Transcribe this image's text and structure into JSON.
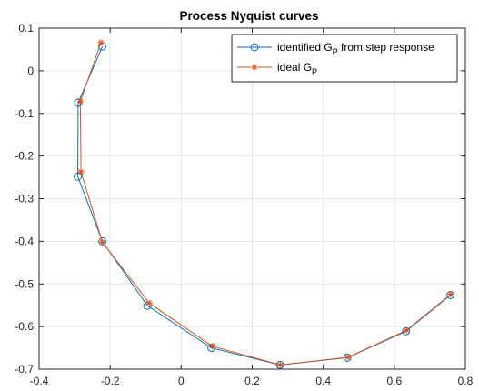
{
  "chart_data": {
    "type": "line",
    "title": "Process Nyquist curves",
    "xlabel": "",
    "ylabel": "",
    "xlim": [
      -0.4,
      0.8
    ],
    "ylim": [
      -0.7,
      0.1
    ],
    "xticks": [
      -0.4,
      -0.2,
      0,
      0.2,
      0.4,
      0.6,
      0.8
    ],
    "yticks": [
      0.1,
      0,
      -0.1,
      -0.2,
      -0.3,
      -0.4,
      -0.5,
      -0.6,
      -0.7
    ],
    "xtick_labels": [
      "-0.4",
      "-0.2",
      "0",
      "0.2",
      "0.4",
      "0.6",
      "0.8"
    ],
    "ytick_labels": [
      "0.1",
      "0",
      "-0.1",
      "-0.2",
      "-0.3",
      "-0.4",
      "-0.5",
      "-0.6",
      "-0.7"
    ],
    "grid": true,
    "legend_position": "top-right",
    "series": [
      {
        "legend_main": "identified G",
        "legend_sub": "P",
        "legend_rest": " from step response",
        "color": "#0072BD",
        "marker": "circle",
        "x": [
          -0.222,
          -0.29,
          -0.291,
          -0.222,
          -0.095,
          0.085,
          0.278,
          0.468,
          0.633,
          0.758
        ],
        "y": [
          0.057,
          -0.075,
          -0.248,
          -0.4,
          -0.551,
          -0.65,
          -0.69,
          -0.673,
          -0.611,
          -0.526
        ]
      },
      {
        "legend_main": "ideal G",
        "legend_sub": "P",
        "legend_rest": "",
        "color": "#D95319",
        "marker": "star",
        "x": [
          -0.226,
          -0.284,
          -0.282,
          -0.222,
          -0.09,
          0.087,
          0.279,
          0.47,
          0.634,
          0.759
        ],
        "y": [
          0.066,
          -0.072,
          -0.237,
          -0.402,
          -0.545,
          -0.646,
          -0.69,
          -0.672,
          -0.609,
          -0.524
        ]
      }
    ]
  }
}
